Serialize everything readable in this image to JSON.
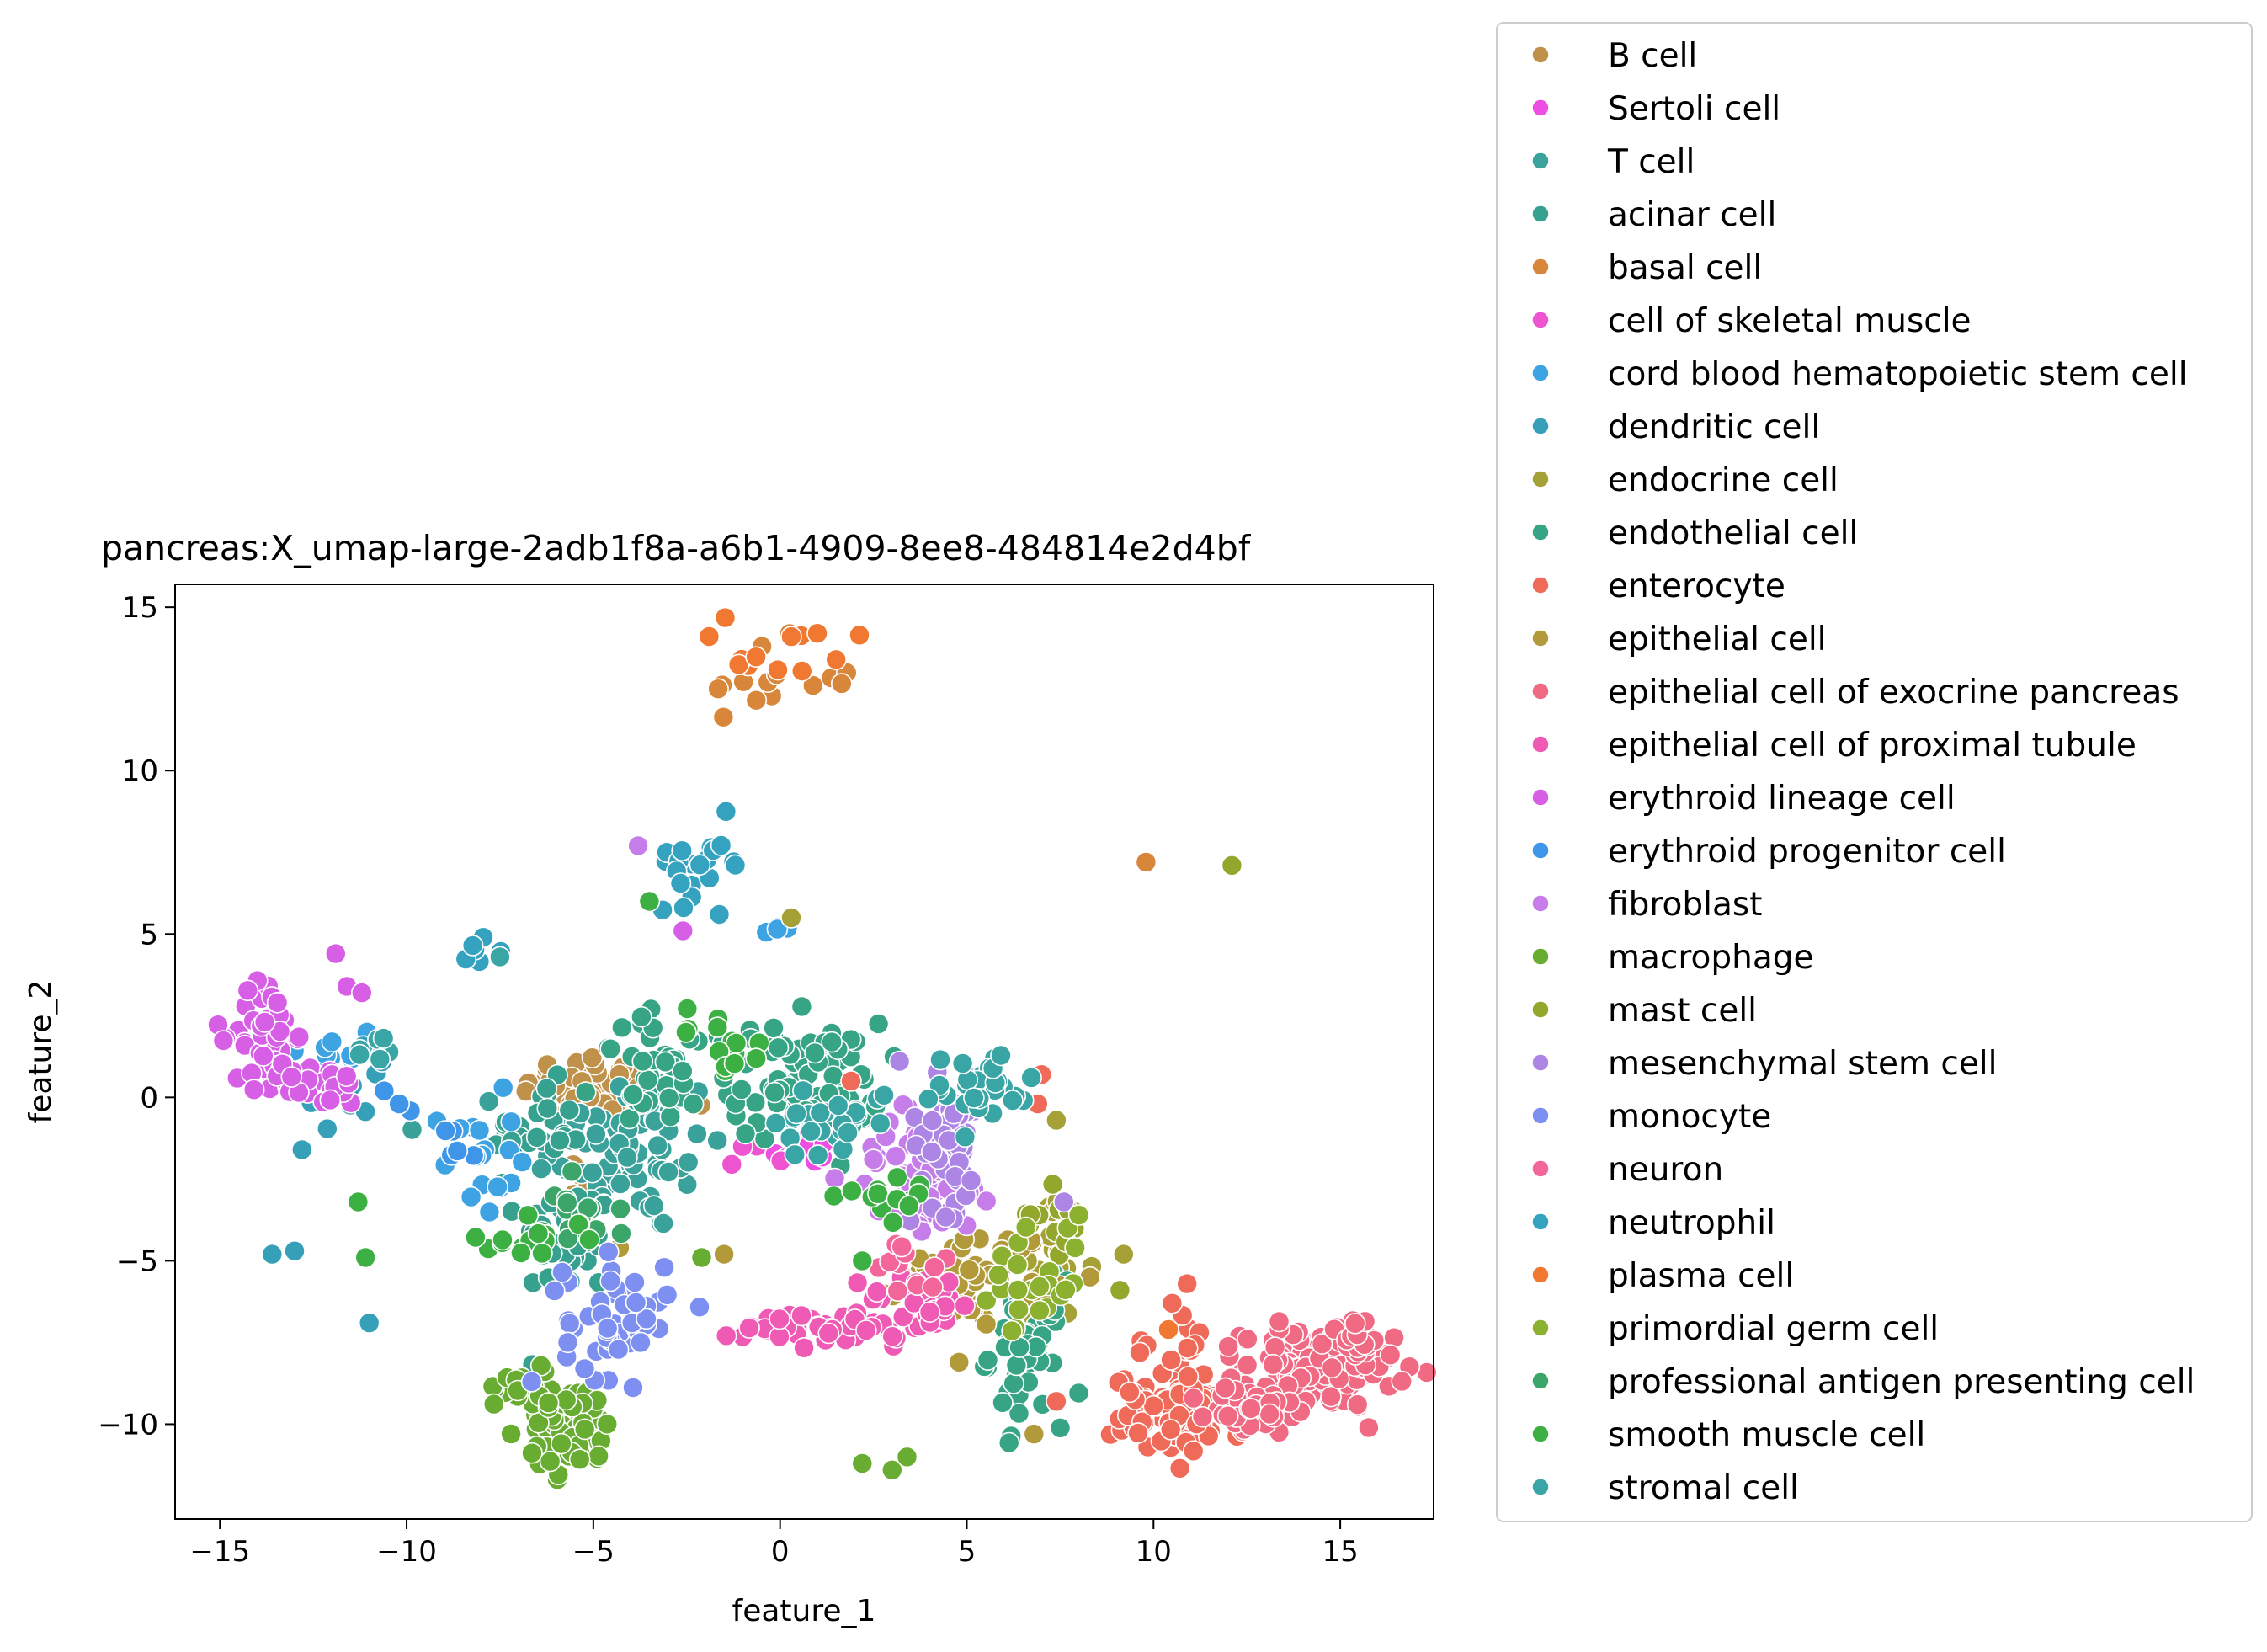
{
  "chart_data": {
    "type": "scatter",
    "title": "pancreas:X_umap-large-2adb1f8a-a6b1-4909-8ee8-484814e2d4bf",
    "xlabel": "feature_1",
    "ylabel": "feature_2",
    "xlim": [
      -16.2,
      17.5
    ],
    "ylim": [
      -12.9,
      15.7
    ],
    "xticks": [
      -15,
      -10,
      -5,
      0,
      5,
      10,
      15
    ],
    "xtick_labels": [
      "−15",
      "−10",
      "−5",
      "0",
      "5",
      "10",
      "15"
    ],
    "yticks": [
      15,
      10,
      5,
      0,
      -5,
      -10
    ],
    "ytick_labels": [
      "15",
      "10",
      "5",
      "0",
      "−5",
      "−10"
    ],
    "grid": false,
    "legend_position": "right, outside plot",
    "series": [
      {
        "name": "B cell",
        "color": "#c0914a",
        "clusters": [
          {
            "cx": -4.9,
            "cy": 0.2,
            "sx": 1.0,
            "sy": 0.6,
            "n": 60
          },
          {
            "cx": -5.3,
            "cy": -2.6,
            "sx": 0.3,
            "sy": 0.4,
            "n": 8
          }
        ]
      },
      {
        "name": "Sertoli cell",
        "color": "#ed4fe3",
        "clusters": [
          {
            "cx": 0.6,
            "cy": -1.6,
            "sx": 0.4,
            "sy": 0.3,
            "n": 8
          }
        ]
      },
      {
        "name": "T cell",
        "color": "#3aa29a",
        "clusters": [
          {
            "cx": -4.2,
            "cy": -1.6,
            "sx": 1.4,
            "sy": 1.3,
            "n": 80
          }
        ]
      },
      {
        "name": "acinar cell",
        "color": "#36a18f",
        "clusters": [
          {
            "cx": -5.7,
            "cy": -4.4,
            "sx": 0.6,
            "sy": 0.9,
            "n": 45
          },
          {
            "cx": -6.5,
            "cy": -1.0,
            "sx": 0.6,
            "sy": 0.7,
            "n": 25
          }
        ]
      },
      {
        "name": "basal cell",
        "color": "#d8863a",
        "clusters": [
          {
            "cx": -0.6,
            "cy": 12.8,
            "sx": 1.4,
            "sy": 0.6,
            "n": 14
          }
        ],
        "points": [
          [
            9.8,
            7.2
          ]
        ]
      },
      {
        "name": "cell of skeletal muscle",
        "color": "#ee53d0",
        "clusters": [
          {
            "cx": -0.3,
            "cy": -1.8,
            "sx": 0.4,
            "sy": 0.3,
            "n": 6
          }
        ]
      },
      {
        "name": "cord blood hematopoietic stem cell",
        "color": "#3ea3e3",
        "clusters": [
          {
            "cx": -8.1,
            "cy": -1.8,
            "sx": 0.5,
            "sy": 0.9,
            "n": 18
          },
          {
            "cx": 0.0,
            "cy": 5.1,
            "sx": 0.3,
            "sy": 0.15,
            "n": 4
          },
          {
            "cx": -12.0,
            "cy": 1.4,
            "sx": 0.6,
            "sy": 0.6,
            "n": 8
          }
        ]
      },
      {
        "name": "dendritic cell",
        "color": "#36a0b8",
        "clusters": [
          {
            "cx": -11.6,
            "cy": 0.6,
            "sx": 0.8,
            "sy": 1.0,
            "n": 16
          }
        ],
        "points": [
          [
            -13.6,
            -4.8
          ],
          [
            -13.0,
            -4.7
          ],
          [
            -11.0,
            -6.9
          ],
          [
            -12.8,
            -1.6
          ]
        ]
      },
      {
        "name": "endocrine cell",
        "color": "#a5a137",
        "clusters": [
          {
            "cx": 7.3,
            "cy": -5.2,
            "sx": 0.5,
            "sy": 1.0,
            "n": 18
          }
        ],
        "points": [
          [
            0.3,
            5.5
          ],
          [
            7.4,
            -0.7
          ],
          [
            9.2,
            -4.8
          ]
        ]
      },
      {
        "name": "endothelial cell",
        "color": "#37a585",
        "clusters": [
          {
            "cx": 0.7,
            "cy": 0.5,
            "sx": 1.0,
            "sy": 0.9,
            "n": 90
          },
          {
            "cx": 6.6,
            "cy": -7.8,
            "sx": 0.5,
            "sy": 1.1,
            "n": 45
          },
          {
            "cx": -3.1,
            "cy": 0.8,
            "sx": 0.9,
            "sy": 0.9,
            "n": 40
          }
        ]
      },
      {
        "name": "enterocyte",
        "color": "#f06a5a",
        "clusters": [
          {
            "cx": 10.7,
            "cy": -9.7,
            "sx": 0.9,
            "sy": 0.6,
            "n": 80
          },
          {
            "cx": 10.4,
            "cy": -7.7,
            "sx": 0.5,
            "sy": 0.7,
            "n": 16
          }
        ],
        "points": [
          [
            7.0,
            0.7
          ],
          [
            6.9,
            -0.2
          ],
          [
            1.9,
            0.5
          ],
          [
            10.9,
            -5.7
          ],
          [
            7.4,
            -9.3
          ]
        ]
      },
      {
        "name": "epithelial cell",
        "color": "#b29a3a",
        "clusters": [
          {
            "cx": 5.3,
            "cy": -5.4,
            "sx": 1.0,
            "sy": 0.7,
            "n": 55
          }
        ],
        "points": [
          [
            -1.5,
            -4.8
          ],
          [
            -4.3,
            -4.6
          ],
          [
            6.8,
            -10.3
          ]
        ]
      },
      {
        "name": "epithelial cell of exocrine pancreas",
        "color": "#f06a84",
        "clusters": [
          {
            "cx": 14.4,
            "cy": -8.3,
            "sx": 1.0,
            "sy": 0.6,
            "n": 160
          },
          {
            "cx": 12.6,
            "cy": -9.6,
            "sx": 0.6,
            "sy": 0.4,
            "n": 40
          },
          {
            "cx": 15.4,
            "cy": -7.4,
            "sx": 0.3,
            "sy": 0.3,
            "n": 30
          }
        ]
      },
      {
        "name": "epithelial cell of proximal tubule",
        "color": "#ef5ab4",
        "clusters": [
          {
            "cx": 1.5,
            "cy": -7.0,
            "sx": 1.2,
            "sy": 0.3,
            "n": 50
          },
          {
            "cx": 3.9,
            "cy": -6.2,
            "sx": 0.8,
            "sy": 0.4,
            "n": 25
          }
        ]
      },
      {
        "name": "erythroid lineage cell",
        "color": "#d75fe6",
        "clusters": [
          {
            "cx": -13.8,
            "cy": 2.0,
            "sx": 0.4,
            "sy": 0.9,
            "n": 40
          },
          {
            "cx": -12.5,
            "cy": 0.4,
            "sx": 0.7,
            "sy": 0.3,
            "n": 35
          }
        ],
        "points": [
          [
            -11.9,
            4.4
          ],
          [
            -11.6,
            3.4
          ],
          [
            -11.2,
            3.2
          ],
          [
            -2.6,
            5.1
          ]
        ]
      },
      {
        "name": "erythroid progenitor cell",
        "color": "#3f96e8",
        "clusters": [
          {
            "cx": -8.9,
            "cy": -1.2,
            "sx": 0.5,
            "sy": 0.7,
            "n": 6
          }
        ],
        "points": [
          [
            -10.6,
            0.2
          ],
          [
            -10.2,
            -0.2
          ]
        ]
      },
      {
        "name": "fibroblast",
        "color": "#c77de9",
        "clusters": [
          {
            "cx": 3.9,
            "cy": -2.3,
            "sx": 1.0,
            "sy": 1.0,
            "n": 60
          }
        ],
        "points": [
          [
            -3.8,
            7.7
          ],
          [
            2.5,
            -1.9
          ],
          [
            3.1,
            -1.8
          ]
        ]
      },
      {
        "name": "macrophage",
        "color": "#68ac32",
        "clusters": [
          {
            "cx": -5.6,
            "cy": -10.2,
            "sx": 0.6,
            "sy": 0.7,
            "n": 60
          },
          {
            "cx": -6.7,
            "cy": -8.7,
            "sx": 0.6,
            "sy": 0.5,
            "n": 18
          }
        ],
        "points": [
          [
            2.2,
            -11.2
          ],
          [
            3.0,
            -11.4
          ],
          [
            3.4,
            -11.0
          ],
          [
            -2.1,
            -4.9
          ]
        ]
      },
      {
        "name": "mast cell",
        "color": "#93a72c",
        "clusters": [
          {
            "cx": 7.5,
            "cy": -3.6,
            "sx": 0.4,
            "sy": 0.6,
            "n": 12
          }
        ],
        "points": [
          [
            12.1,
            7.1
          ],
          [
            9.1,
            -5.9
          ]
        ]
      },
      {
        "name": "mesenchymal stem cell",
        "color": "#ad85e5",
        "clusters": [
          {
            "cx": 4.5,
            "cy": -1.4,
            "sx": 0.5,
            "sy": 1.0,
            "n": 50
          }
        ],
        "points": [
          [
            3.2,
            1.1
          ],
          [
            7.6,
            -3.2
          ]
        ]
      },
      {
        "name": "monocyte",
        "color": "#7d8ff0",
        "clusters": [
          {
            "cx": -4.4,
            "cy": -6.8,
            "sx": 0.7,
            "sy": 0.9,
            "n": 50
          }
        ],
        "points": [
          [
            -3.1,
            -5.2
          ]
        ]
      },
      {
        "name": "neuron",
        "color": "#f2669a",
        "clusters": [
          {
            "cx": 3.6,
            "cy": -5.2,
            "sx": 0.5,
            "sy": 0.6,
            "n": 12
          }
        ]
      },
      {
        "name": "neutrophil",
        "color": "#35a3c0",
        "clusters": [
          {
            "cx": -2.1,
            "cy": 7.2,
            "sx": 0.6,
            "sy": 0.6,
            "n": 22
          },
          {
            "cx": -8.0,
            "cy": 4.6,
            "sx": 0.5,
            "sy": 0.2,
            "n": 6
          }
        ]
      },
      {
        "name": "plasma cell",
        "color": "#f07830",
        "clusters": [
          {
            "cx": -0.2,
            "cy": 13.2,
            "sx": 1.2,
            "sy": 0.7,
            "n": 10
          }
        ],
        "points": [
          [
            1.5,
            13.4
          ],
          [
            1.0,
            14.2
          ],
          [
            0.3,
            14.1
          ],
          [
            10.4,
            -7.1
          ]
        ]
      },
      {
        "name": "primordial germ cell",
        "color": "#8cb030",
        "clusters": [
          {
            "cx": 6.4,
            "cy": -5.9,
            "sx": 0.8,
            "sy": 0.8,
            "n": 20
          }
        ],
        "points": [
          [
            7.7,
            -4.0
          ],
          [
            8.0,
            -3.6
          ],
          [
            7.9,
            -4.6
          ]
        ]
      },
      {
        "name": "professional antigen presenting cell",
        "color": "#3ca66a",
        "clusters": [
          {
            "cx": -5.4,
            "cy": -3.4,
            "sx": 0.5,
            "sy": 0.6,
            "n": 15
          }
        ]
      },
      {
        "name": "smooth muscle cell",
        "color": "#3db044",
        "clusters": [
          {
            "cx": -6.9,
            "cy": -4.3,
            "sx": 0.9,
            "sy": 0.3,
            "n": 14
          },
          {
            "cx": 3.0,
            "cy": -3.2,
            "sx": 0.7,
            "sy": 0.3,
            "n": 14
          },
          {
            "cx": -1.5,
            "cy": 1.8,
            "sx": 0.8,
            "sy": 0.5,
            "n": 14
          }
        ],
        "points": [
          [
            -11.3,
            -3.2
          ],
          [
            -11.1,
            -4.9
          ],
          [
            -3.5,
            6.0
          ],
          [
            2.2,
            -5.0
          ]
        ]
      },
      {
        "name": "stromal cell",
        "color": "#3aa5a5",
        "clusters": [
          {
            "cx": 5.3,
            "cy": 0.2,
            "sx": 0.8,
            "sy": 0.6,
            "n": 30
          },
          {
            "cx": 1.5,
            "cy": -0.7,
            "sx": 0.8,
            "sy": 0.6,
            "n": 25
          },
          {
            "cx": -11.0,
            "cy": 1.7,
            "sx": 0.5,
            "sy": 0.4,
            "n": 8
          }
        ],
        "points": [
          [
            -7.5,
            4.3
          ]
        ]
      }
    ]
  }
}
